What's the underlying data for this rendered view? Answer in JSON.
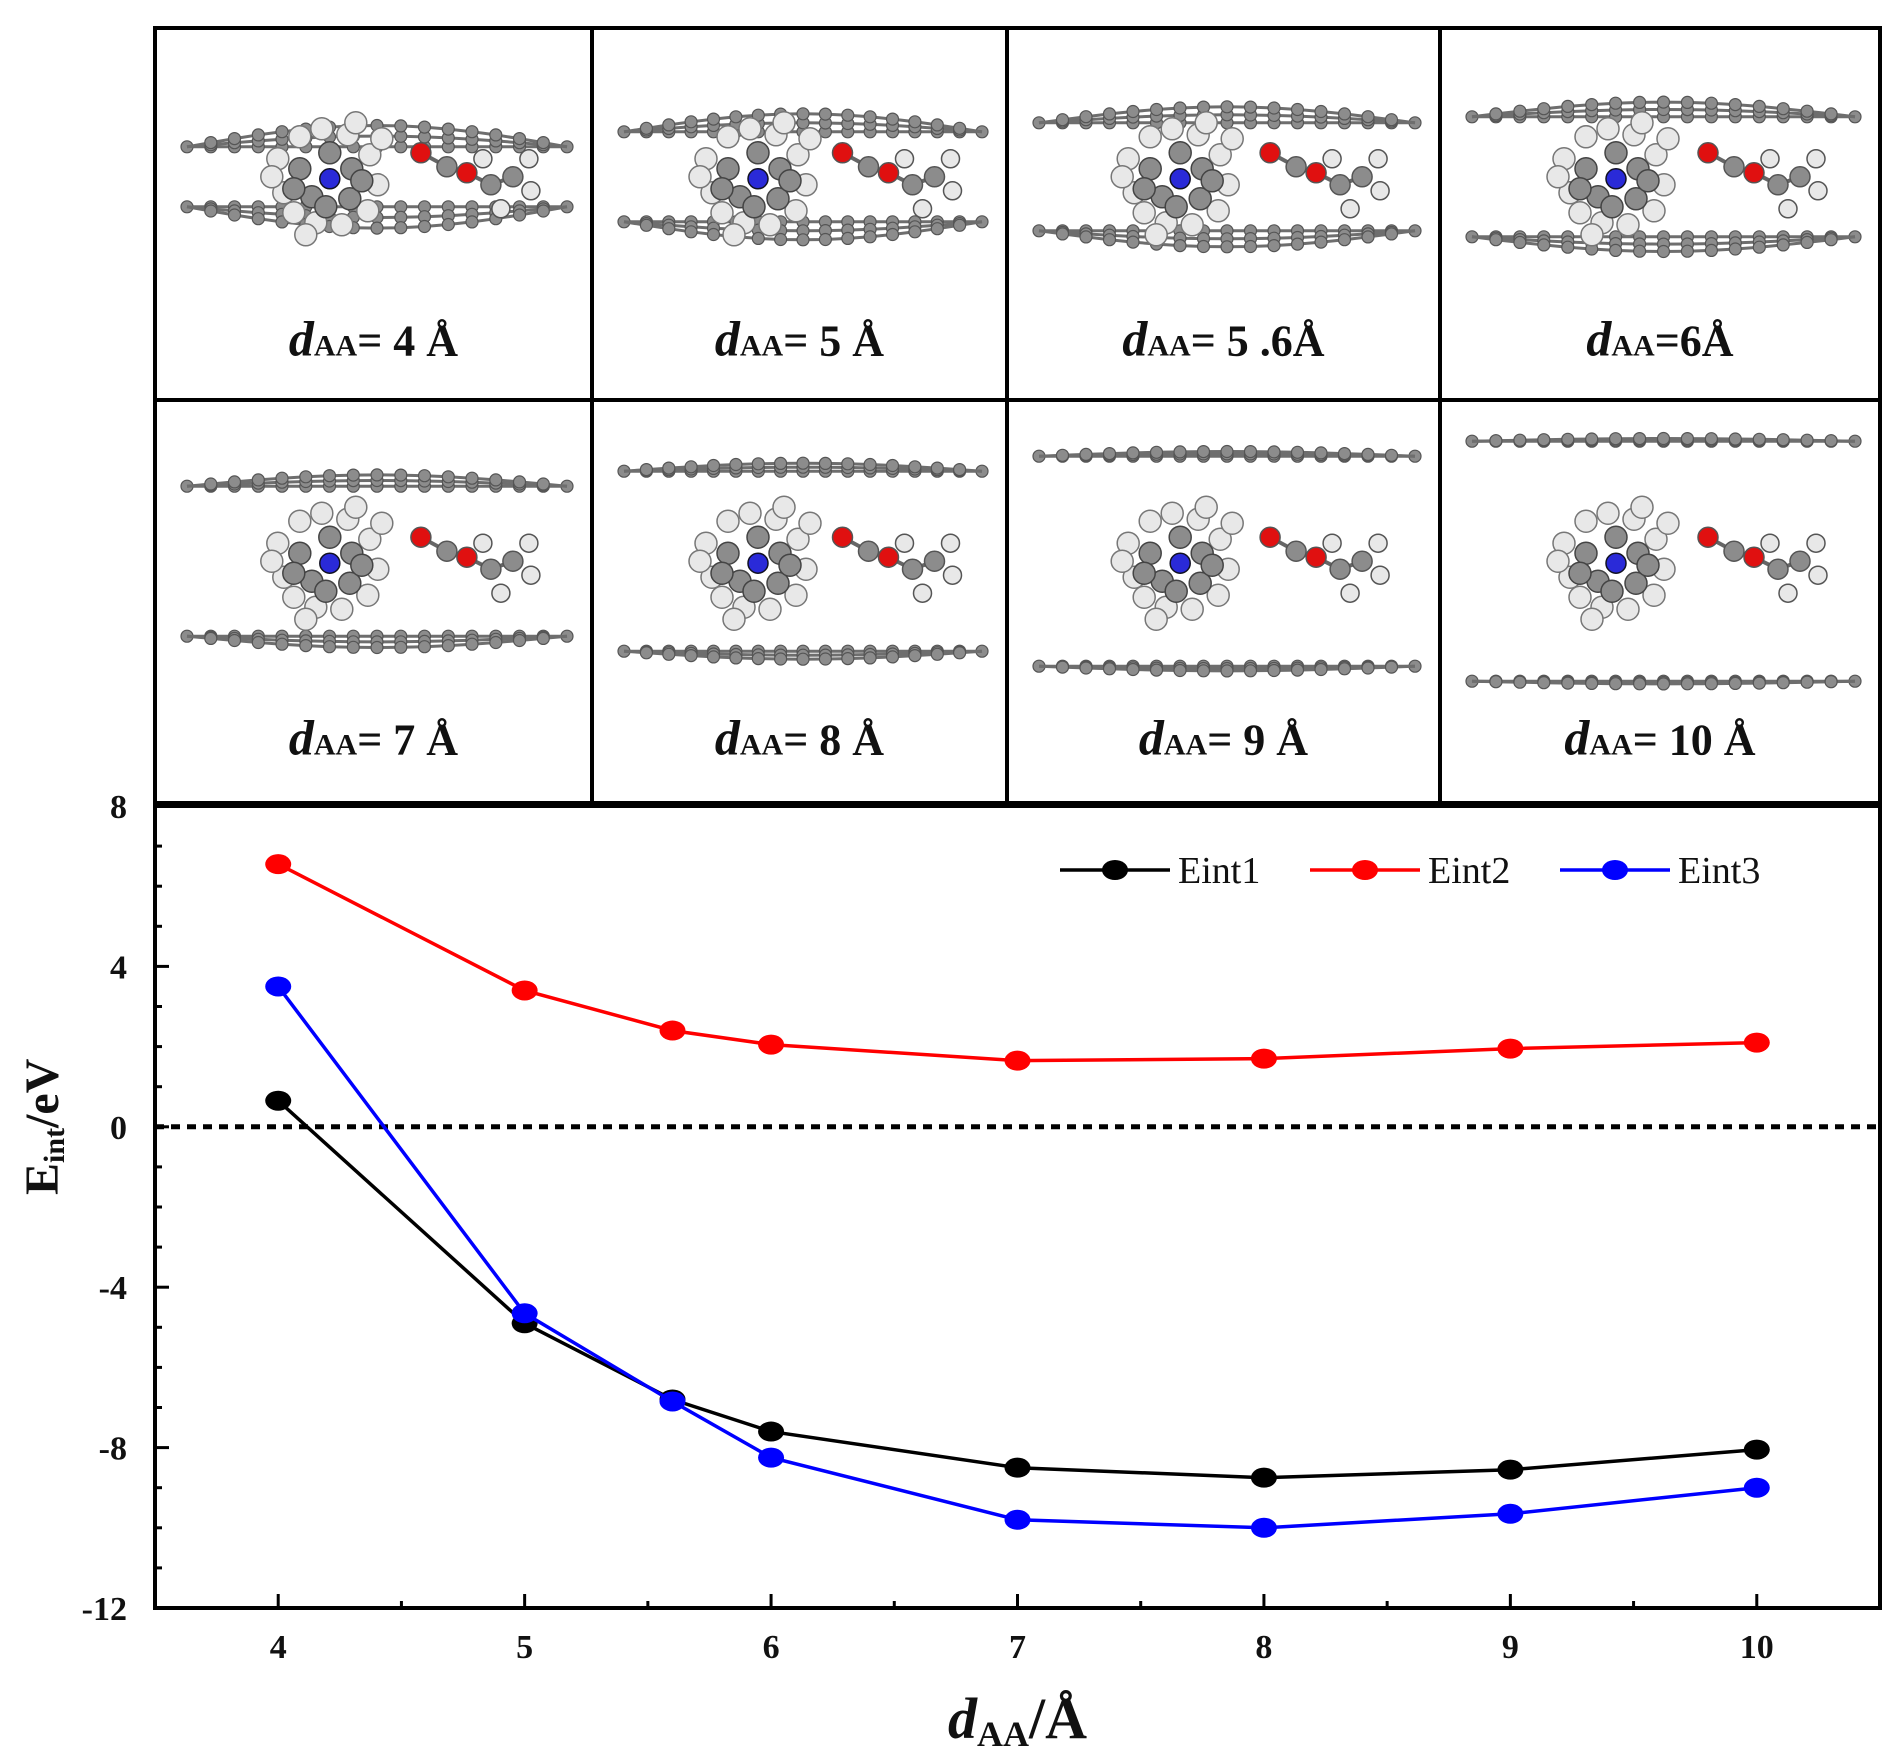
{
  "panels": {
    "symbol": "d",
    "subscript": "AA",
    "labels": [
      "= 4 Å",
      "= 5 Å",
      "= 5 .6Å",
      "=6Å",
      "= 7 Å",
      "= 8 Å",
      "= 9 Å",
      "= 10 Å"
    ],
    "separations": [
      4,
      5,
      5.6,
      6,
      7,
      8,
      9,
      10
    ]
  },
  "colors": {
    "eint1": "#000000",
    "eint2": "#ff0000",
    "eint3": "#0000ff",
    "carbon": "#8c8c8c",
    "hydrogen": "#e8e8e8",
    "oxygen": "#e01010",
    "nitrogen": "#2a2ad8"
  },
  "chart_data": {
    "type": "line",
    "x": [
      4,
      5,
      5.6,
      6,
      7,
      8,
      9,
      10
    ],
    "series": [
      {
        "name": "Eint1",
        "values": [
          0.65,
          -4.9,
          -6.8,
          -7.6,
          -8.5,
          -8.75,
          -8.55,
          -8.05
        ]
      },
      {
        "name": "Eint2",
        "values": [
          6.55,
          3.4,
          2.4,
          2.05,
          1.65,
          1.7,
          1.95,
          2.1
        ]
      },
      {
        "name": "Eint3",
        "values": [
          3.5,
          -4.65,
          -6.85,
          -8.25,
          -9.8,
          -10.0,
          -9.65,
          -9.0
        ]
      }
    ],
    "xlim": [
      3.5,
      10.5
    ],
    "ylim": [
      -12,
      8
    ],
    "xticks": [
      "4",
      "5",
      "6",
      "7",
      "8",
      "9",
      "10"
    ],
    "yticks": [
      "8",
      "4",
      "0",
      "-4",
      "-8",
      "-12"
    ],
    "ylabel_main": "E",
    "ylabel_sub": "int",
    "ylabel_unit": "/eV",
    "xlabel_main": "d",
    "xlabel_sub": "AA",
    "xlabel_unit": "/Å",
    "reference_line": 0,
    "legend_position": "top-right"
  }
}
